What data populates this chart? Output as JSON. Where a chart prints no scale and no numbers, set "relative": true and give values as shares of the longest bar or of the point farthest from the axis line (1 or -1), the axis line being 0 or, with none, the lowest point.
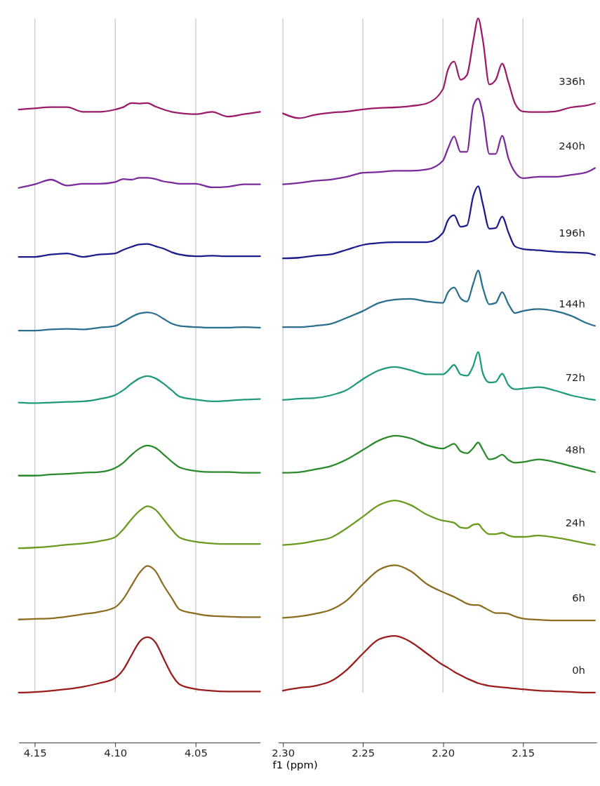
{
  "chart_data": [
    {
      "type": "line",
      "relative": true,
      "grid": "x",
      "xlim": [
        4.16,
        4.01
      ],
      "xticks": [
        4.15,
        {
          "value": 4.1,
          "label": "4.10"
        },
        4.05
      ],
      "x": [
        4.16,
        4.15,
        4.14,
        4.13,
        4.12,
        4.11,
        4.1,
        4.095,
        4.09,
        4.085,
        4.08,
        4.075,
        4.07,
        4.065,
        4.06,
        4.05,
        4.04,
        4.03,
        4.02,
        4.01
      ],
      "series": [
        {
          "color": "#9b1a6a",
          "values": [
            0.989,
            0.991,
            0.993,
            0.993,
            0.985,
            0.985,
            0.989,
            0.993,
            1.0,
            0.999,
            1.0,
            0.994,
            0.989,
            0.985,
            0.983,
            0.981,
            0.985,
            0.977,
            0.981,
            0.985
          ]
        },
        {
          "color": "#7a2a9a",
          "values": [
            0.856,
            0.862,
            0.87,
            0.86,
            0.863,
            0.863,
            0.866,
            0.871,
            0.87,
            0.873,
            0.873,
            0.871,
            0.867,
            0.865,
            0.863,
            0.863,
            0.857,
            0.858,
            0.862,
            0.862
          ]
        },
        {
          "color": "#1c1c8c",
          "values": [
            0.739,
            0.739,
            0.743,
            0.745,
            0.739,
            0.743,
            0.745,
            0.751,
            0.756,
            0.76,
            0.761,
            0.757,
            0.753,
            0.747,
            0.743,
            0.74,
            0.741,
            0.74,
            0.74,
            0.74
          ]
        },
        {
          "color": "#2a6f8f",
          "values": [
            0.614,
            0.614,
            0.616,
            0.617,
            0.616,
            0.619,
            0.622,
            0.629,
            0.637,
            0.643,
            0.645,
            0.642,
            0.634,
            0.626,
            0.622,
            0.62,
            0.619,
            0.619,
            0.62,
            0.619
          ]
        },
        {
          "color": "#1f9a7a",
          "values": [
            0.492,
            0.491,
            0.492,
            0.493,
            0.494,
            0.498,
            0.505,
            0.513,
            0.524,
            0.533,
            0.537,
            0.533,
            0.524,
            0.513,
            0.502,
            0.497,
            0.494,
            0.495,
            0.497,
            0.498
          ]
        },
        {
          "color": "#2a8a2a",
          "values": [
            0.368,
            0.368,
            0.37,
            0.371,
            0.373,
            0.374,
            0.381,
            0.39,
            0.403,
            0.414,
            0.419,
            0.415,
            0.404,
            0.392,
            0.382,
            0.376,
            0.374,
            0.374,
            0.373,
            0.373
          ]
        },
        {
          "color": "#6a9a1f",
          "values": [
            0.245,
            0.246,
            0.248,
            0.251,
            0.253,
            0.257,
            0.264,
            0.277,
            0.294,
            0.308,
            0.316,
            0.31,
            0.294,
            0.277,
            0.263,
            0.256,
            0.253,
            0.252,
            0.252,
            0.252
          ]
        },
        {
          "color": "#8c6d1f",
          "values": [
            0.124,
            0.125,
            0.126,
            0.129,
            0.133,
            0.137,
            0.145,
            0.159,
            0.181,
            0.203,
            0.215,
            0.206,
            0.182,
            0.161,
            0.141,
            0.134,
            0.13,
            0.129,
            0.128,
            0.128
          ]
        },
        {
          "color": "#9b1c1c",
          "values": [
            0,
            0.001,
            0.003,
            0.006,
            0.01,
            0.016,
            0.025,
            0.039,
            0.063,
            0.086,
            0.094,
            0.085,
            0.058,
            0.031,
            0.014,
            0.006,
            0.003,
            0.002,
            0.002,
            0.002
          ]
        }
      ]
    },
    {
      "type": "line",
      "relative": true,
      "grid": "x",
      "xlabel": "f1 (ppm)",
      "xlim": [
        2.303,
        2.104
      ],
      "xticks": [
        {
          "value": 2.3,
          "label": "2.30"
        },
        2.25,
        {
          "value": 2.2,
          "label": "2.20"
        },
        2.15
      ],
      "x": [
        2.3,
        2.29,
        2.28,
        2.27,
        2.26,
        2.25,
        2.24,
        2.23,
        2.22,
        2.21,
        2.2,
        2.197,
        2.193,
        2.189,
        2.185,
        2.181,
        2.178,
        2.175,
        2.171,
        2.167,
        2.163,
        2.159,
        2.155,
        2.15,
        2.14,
        2.13,
        2.12,
        2.11,
        2.105
      ],
      "series": [
        {
          "name": "336h",
          "color": "#9b1a6a",
          "values": [
            0.859,
            0.852,
            0.857,
            0.86,
            0.862,
            0.865,
            0.867,
            0.868,
            0.87,
            0.874,
            0.895,
            0.923,
            0.936,
            0.909,
            0.916,
            0.967,
            1.0,
            0.967,
            0.902,
            0.909,
            0.933,
            0.905,
            0.874,
            0.862,
            0.861,
            0.862,
            0.868,
            0.871,
            0.874
          ]
        },
        {
          "name": "240h",
          "color": "#7a2a9a",
          "values": [
            0.754,
            0.756,
            0.759,
            0.761,
            0.765,
            0.771,
            0.772,
            0.774,
            0.774,
            0.776,
            0.789,
            0.806,
            0.825,
            0.802,
            0.802,
            0.871,
            0.881,
            0.857,
            0.799,
            0.799,
            0.826,
            0.792,
            0.772,
            0.763,
            0.765,
            0.765,
            0.768,
            0.772,
            0.778
          ]
        },
        {
          "name": "196h",
          "color": "#1c1c8c",
          "values": [
            0.644,
            0.645,
            0.648,
            0.65,
            0.657,
            0.664,
            0.667,
            0.668,
            0.668,
            0.668,
            0.682,
            0.7,
            0.708,
            0.691,
            0.693,
            0.737,
            0.751,
            0.724,
            0.688,
            0.689,
            0.706,
            0.682,
            0.662,
            0.658,
            0.656,
            0.654,
            0.653,
            0.652,
            0.649
          ]
        },
        {
          "name": "144h",
          "color": "#2a6f8f",
          "values": [
            0.542,
            0.542,
            0.544,
            0.547,
            0.556,
            0.566,
            0.578,
            0.583,
            0.584,
            0.58,
            0.578,
            0.593,
            0.601,
            0.585,
            0.58,
            0.607,
            0.626,
            0.6,
            0.576,
            0.578,
            0.594,
            0.576,
            0.563,
            0.566,
            0.569,
            0.566,
            0.559,
            0.548,
            0.544
          ]
        },
        {
          "name": "72h",
          "color": "#1f9a7a",
          "values": [
            0.434,
            0.436,
            0.437,
            0.441,
            0.449,
            0.465,
            0.478,
            0.483,
            0.478,
            0.472,
            0.472,
            0.477,
            0.486,
            0.472,
            0.47,
            0.485,
            0.505,
            0.473,
            0.46,
            0.461,
            0.473,
            0.456,
            0.45,
            0.451,
            0.453,
            0.448,
            0.441,
            0.436,
            0.434
          ]
        },
        {
          "name": "48h",
          "color": "#2a8a2a",
          "values": [
            0.326,
            0.327,
            0.331,
            0.336,
            0.346,
            0.36,
            0.374,
            0.381,
            0.377,
            0.367,
            0.362,
            0.365,
            0.369,
            0.358,
            0.355,
            0.363,
            0.371,
            0.36,
            0.346,
            0.348,
            0.353,
            0.345,
            0.341,
            0.342,
            0.346,
            0.342,
            0.336,
            0.33,
            0.327
          ]
        },
        {
          "name": "24h",
          "color": "#6a9a1f",
          "values": [
            0.219,
            0.221,
            0.225,
            0.23,
            0.244,
            0.261,
            0.278,
            0.285,
            0.278,
            0.264,
            0.255,
            0.254,
            0.252,
            0.245,
            0.244,
            0.249,
            0.25,
            0.242,
            0.235,
            0.235,
            0.237,
            0.233,
            0.231,
            0.231,
            0.233,
            0.23,
            0.226,
            0.221,
            0.219
          ]
        },
        {
          "name": "6h",
          "color": "#8c6d1f",
          "values": [
            0.111,
            0.113,
            0.117,
            0.123,
            0.137,
            0.161,
            0.182,
            0.189,
            0.18,
            0.161,
            0.149,
            0.146,
            0.142,
            0.137,
            0.132,
            0.13,
            0.13,
            0.127,
            0.122,
            0.118,
            0.118,
            0.117,
            0.113,
            0.11,
            0.108,
            0.107,
            0.107,
            0.107,
            0.107
          ]
        },
        {
          "name": "0h",
          "color": "#9b1c1c",
          "values": [
            0.003,
            0.007,
            0.01,
            0.017,
            0.034,
            0.058,
            0.079,
            0.084,
            0.075,
            0.058,
            0.041,
            0.037,
            0.031,
            0.026,
            0.021,
            0.017,
            0.014,
            0.012,
            0.01,
            0.009,
            0.008,
            0.007,
            0.006,
            0.005,
            0.003,
            0.002,
            0.001,
            0,
            0
          ]
        }
      ]
    }
  ]
}
